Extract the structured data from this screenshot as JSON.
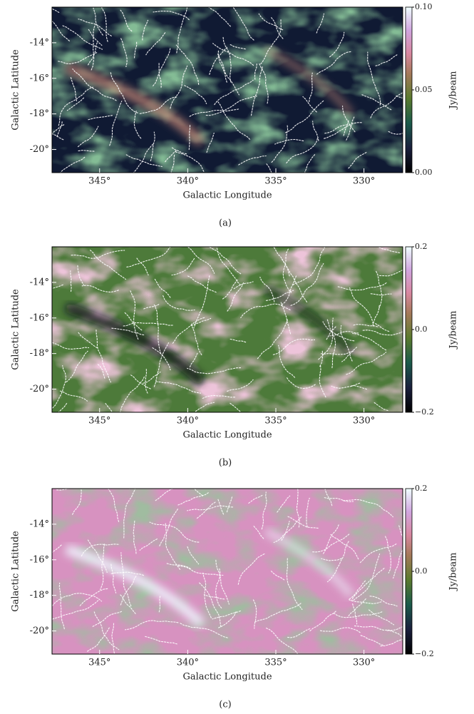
{
  "chart_data": [
    {
      "type": "image",
      "colormap": "cubehelix",
      "xlabel": "Galactic Longitude",
      "ylabel": "Galactic Latitude",
      "xlim": [
        347.7,
        327.8
      ],
      "ylim": [
        -21.3,
        -12
      ],
      "xticks": [
        {
          "value": 345,
          "label": "345°"
        },
        {
          "value": 340,
          "label": "340°"
        },
        {
          "value": 335,
          "label": "335°"
        },
        {
          "value": 330,
          "label": "330°"
        }
      ],
      "yticks": [
        {
          "value": -14,
          "label": "-14°"
        },
        {
          "value": -16,
          "label": "-16°"
        },
        {
          "value": -18,
          "label": "-18°"
        },
        {
          "value": -20,
          "label": "-20°"
        }
      ],
      "colorbar": {
        "label": "Jy/beam",
        "lim": [
          0,
          0.1
        ],
        "ticks": [
          {
            "value": 0,
            "label": "0.00"
          },
          {
            "value": 0.05,
            "label": "0.05"
          },
          {
            "value": 0.1,
            "label": "0.10"
          }
        ]
      },
      "caption": "(a)"
    },
    {
      "type": "image",
      "colormap": "cubehelix",
      "xlabel": "Galactic Longitude",
      "ylabel": "Galactic Latitude",
      "xlim": [
        347.7,
        327.8
      ],
      "ylim": [
        -21.3,
        -12
      ],
      "xticks": [
        {
          "value": 345,
          "label": "345°"
        },
        {
          "value": 340,
          "label": "340°"
        },
        {
          "value": 335,
          "label": "335°"
        },
        {
          "value": 330,
          "label": "330°"
        }
      ],
      "yticks": [
        {
          "value": -14,
          "label": "-14°"
        },
        {
          "value": -16,
          "label": "-16°"
        },
        {
          "value": -18,
          "label": "-18°"
        },
        {
          "value": -20,
          "label": "-20°"
        }
      ],
      "colorbar": {
        "label": "Jy/beam",
        "lim": [
          -0.2,
          0.2
        ],
        "ticks": [
          {
            "value": -0.2,
            "label": "−0.2"
          },
          {
            "value": 0,
            "label": "0.0"
          },
          0.2
        ]
      },
      "caption": "(b)"
    },
    {
      "type": "image",
      "colormap": "cubehelix",
      "xlabel": "Galactic Longitude",
      "ylabel": "Galactic Latitude",
      "xlim": [
        347.7,
        327.8
      ],
      "ylim": [
        -21.3,
        -12
      ],
      "xticks": [
        {
          "value": 345,
          "label": "345°"
        },
        {
          "value": 340,
          "label": "340°"
        },
        {
          "value": 335,
          "label": "335°"
        },
        {
          "value": 330,
          "label": "330°"
        }
      ],
      "yticks": [
        {
          "value": -14,
          "label": "-14°"
        },
        {
          "value": -16,
          "label": "-16°"
        },
        {
          "value": -18,
          "label": "-18°"
        },
        {
          "value": -20,
          "label": "-20°"
        }
      ],
      "colorbar": {
        "label": "Jy/beam",
        "lim": [
          -0.2,
          0.2
        ],
        "ticks": [
          {
            "value": -0.2,
            "label": "−0.2"
          },
          {
            "value": 0,
            "label": "0.0"
          },
          0.2
        ]
      },
      "caption": "(c)"
    }
  ]
}
